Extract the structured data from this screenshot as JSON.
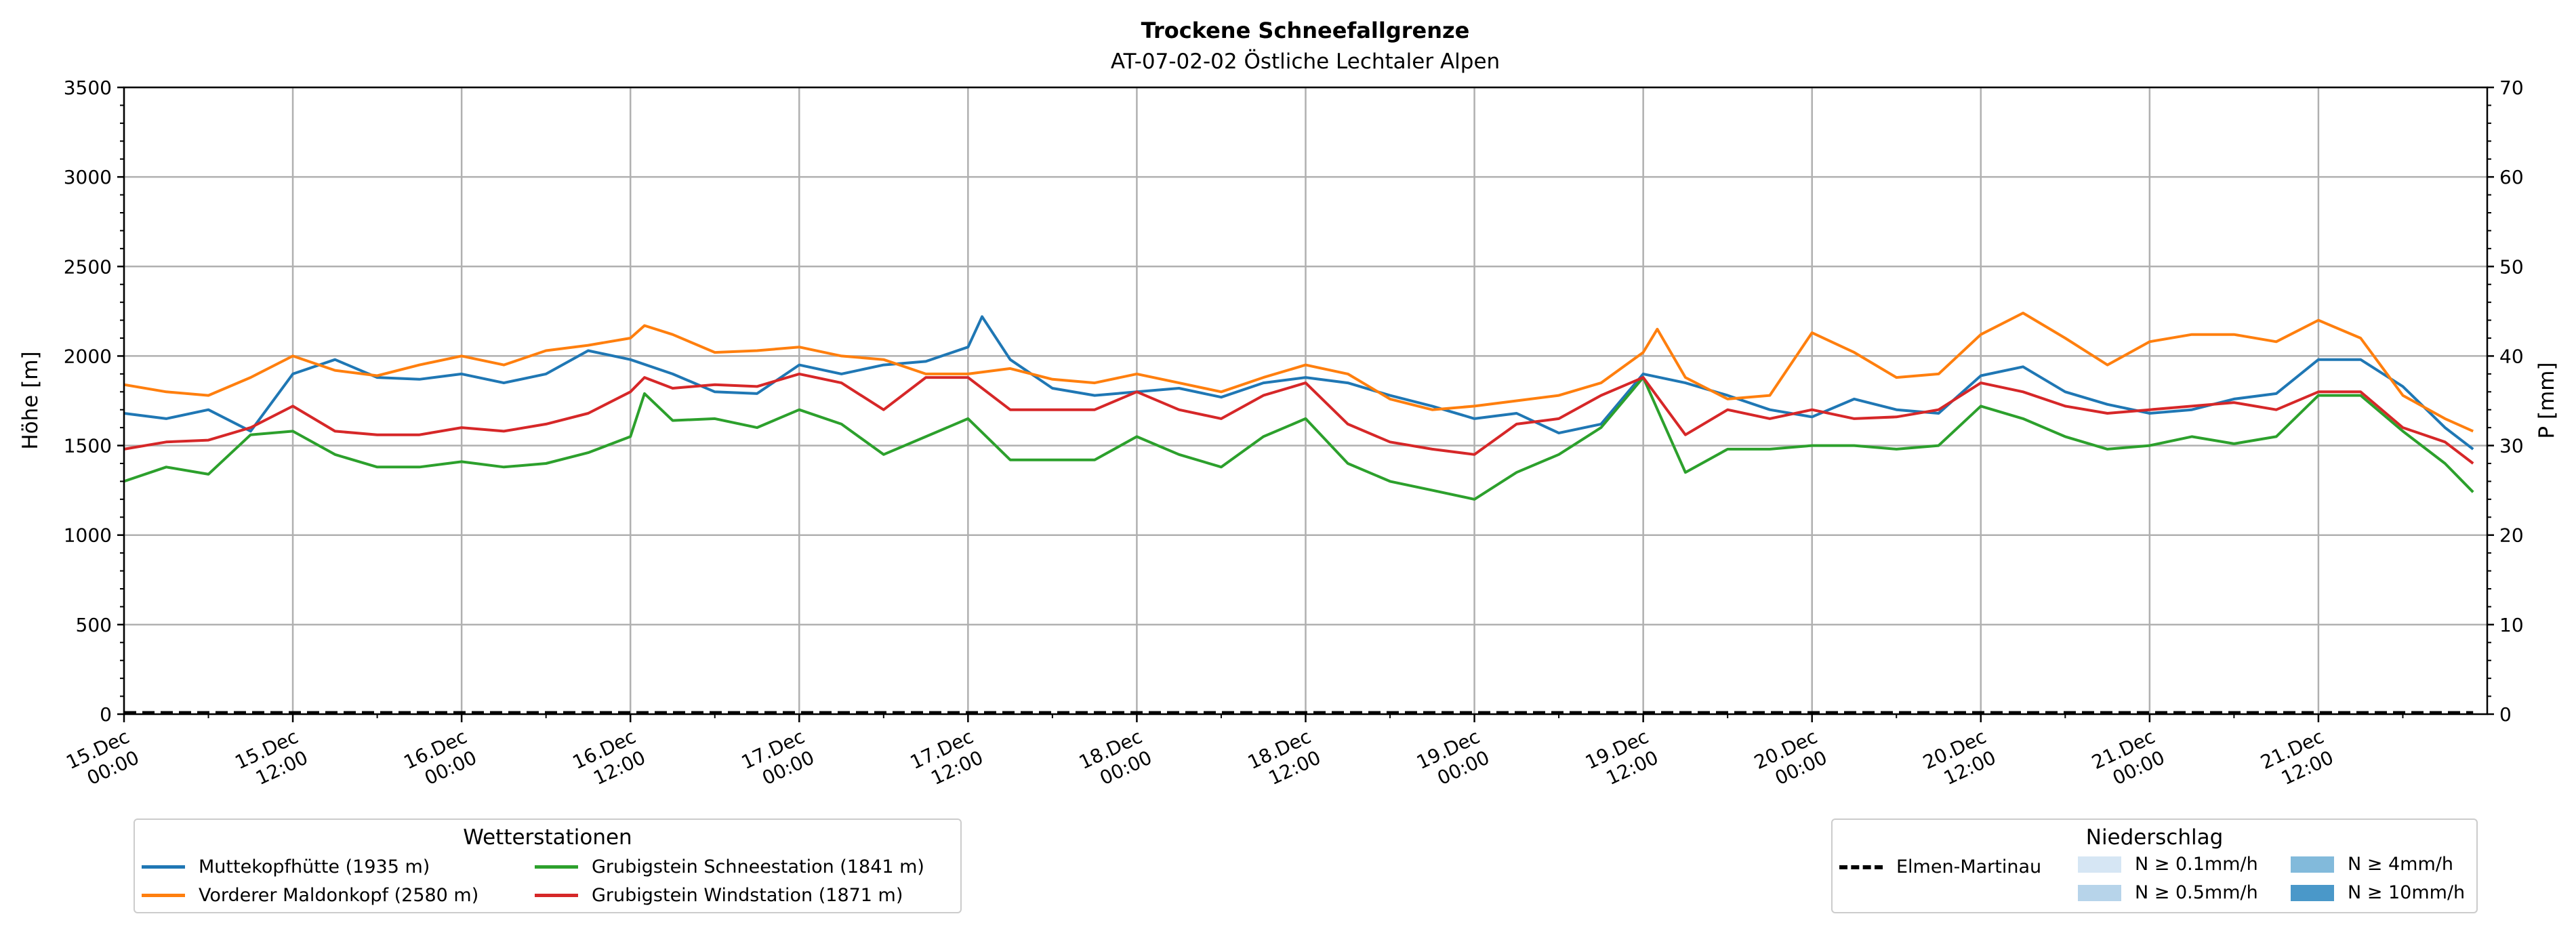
{
  "chart_data": {
    "type": "line",
    "title": "Trockene Schneefallgrenze",
    "subtitle": "AT-07-02-02 Östliche Lechtaler Alpen",
    "ylabel_left": "Höhe [m]",
    "ylabel_right": "P [mm]",
    "ylim_left": [
      0,
      3500
    ],
    "ylim_right": [
      0,
      70
    ],
    "yticks_left": [
      0,
      500,
      1000,
      1500,
      2000,
      2500,
      3000,
      3500
    ],
    "yticks_right": [
      0,
      10,
      20,
      30,
      40,
      50,
      60,
      70
    ],
    "x_start": "15.Dec 00:00",
    "x_end": "21.Dec 22:00",
    "x_ticks": [
      "15.Dec\n00:00",
      "15.Dec\n12:00",
      "16.Dec\n00:00",
      "16.Dec\n12:00",
      "17.Dec\n00:00",
      "17.Dec\n12:00",
      "18.Dec\n00:00",
      "18.Dec\n12:00",
      "19.Dec\n00:00",
      "19.Dec\n12:00",
      "20.Dec\n00:00",
      "20.Dec\n12:00",
      "21.Dec\n00:00",
      "21.Dec\n12:00"
    ],
    "x_tick_hours": [
      0,
      12,
      24,
      36,
      48,
      60,
      72,
      84,
      96,
      108,
      120,
      132,
      144,
      156
    ],
    "grid": true,
    "series": [
      {
        "name": "Muttekopfhütte (1935 m)",
        "color": "#1f77b4",
        "x_hours": [
          0,
          3,
          6,
          9,
          12,
          15,
          18,
          21,
          24,
          27,
          30,
          33,
          36,
          39,
          42,
          45,
          48,
          51,
          54,
          57,
          60,
          61,
          63,
          66,
          69,
          72,
          75,
          78,
          81,
          84,
          87,
          90,
          93,
          96,
          99,
          102,
          105,
          108,
          111,
          114,
          117,
          120,
          123,
          126,
          129,
          132,
          135,
          138,
          141,
          144,
          147,
          150,
          153,
          156,
          159,
          162,
          165,
          167
        ],
        "values": [
          1680,
          1650,
          1700,
          1580,
          1900,
          1980,
          1880,
          1870,
          1900,
          1850,
          1900,
          2030,
          1980,
          1900,
          1800,
          1790,
          1950,
          1900,
          1950,
          1970,
          2050,
          2220,
          1980,
          1820,
          1780,
          1800,
          1820,
          1770,
          1850,
          1880,
          1850,
          1780,
          1720,
          1650,
          1680,
          1570,
          1620,
          1900,
          1850,
          1780,
          1700,
          1660,
          1760,
          1700,
          1680,
          1890,
          1940,
          1800,
          1730,
          1680,
          1700,
          1760,
          1790,
          1980,
          1980,
          1830,
          1600,
          1480
        ]
      },
      {
        "name": "Vorderer Maldonkopf (2580 m)",
        "color": "#ff7f0e",
        "x_hours": [
          0,
          3,
          6,
          9,
          12,
          15,
          18,
          21,
          24,
          27,
          30,
          33,
          36,
          37,
          39,
          42,
          45,
          48,
          51,
          54,
          57,
          60,
          63,
          66,
          69,
          72,
          75,
          78,
          81,
          84,
          87,
          90,
          93,
          96,
          99,
          102,
          105,
          108,
          109,
          111,
          114,
          117,
          120,
          123,
          126,
          129,
          132,
          135,
          138,
          141,
          144,
          147,
          150,
          153,
          156,
          159,
          162,
          165,
          167
        ],
        "values": [
          1840,
          1800,
          1780,
          1880,
          2000,
          1920,
          1890,
          1950,
          2000,
          1950,
          2030,
          2060,
          2100,
          2170,
          2120,
          2020,
          2030,
          2050,
          2000,
          1980,
          1900,
          1900,
          1930,
          1870,
          1850,
          1900,
          1850,
          1800,
          1880,
          1950,
          1900,
          1760,
          1700,
          1720,
          1750,
          1780,
          1850,
          2020,
          2150,
          1880,
          1760,
          1780,
          2130,
          2020,
          1880,
          1900,
          2120,
          2240,
          2100,
          1950,
          2080,
          2120,
          2120,
          2080,
          2200,
          2100,
          1780,
          1650,
          1580
        ]
      },
      {
        "name": "Grubigstein Schneestation (1841 m)",
        "color": "#2ca02c",
        "x_hours": [
          0,
          3,
          6,
          9,
          12,
          15,
          18,
          21,
          24,
          27,
          30,
          33,
          36,
          37,
          39,
          42,
          45,
          48,
          51,
          54,
          57,
          60,
          63,
          66,
          69,
          72,
          75,
          78,
          81,
          84,
          87,
          90,
          93,
          96,
          99,
          102,
          105,
          108,
          111,
          114,
          117,
          120,
          123,
          126,
          129,
          132,
          135,
          138,
          141,
          144,
          147,
          150,
          153,
          156,
          159,
          162,
          165,
          167
        ],
        "values": [
          1300,
          1380,
          1340,
          1560,
          1580,
          1450,
          1380,
          1380,
          1410,
          1380,
          1400,
          1460,
          1550,
          1790,
          1640,
          1650,
          1600,
          1700,
          1620,
          1450,
          1550,
          1650,
          1420,
          1420,
          1420,
          1550,
          1450,
          1380,
          1550,
          1650,
          1400,
          1300,
          1250,
          1200,
          1350,
          1450,
          1600,
          1880,
          1350,
          1480,
          1480,
          1500,
          1500,
          1480,
          1500,
          1720,
          1650,
          1550,
          1480,
          1500,
          1550,
          1510,
          1550,
          1780,
          1780,
          1580,
          1400,
          1240
        ]
      },
      {
        "name": "Grubigstein Windstation (1871 m)",
        "color": "#d62728",
        "x_hours": [
          0,
          3,
          6,
          9,
          12,
          15,
          18,
          21,
          24,
          27,
          30,
          33,
          36,
          37,
          39,
          42,
          45,
          48,
          51,
          54,
          57,
          60,
          63,
          66,
          69,
          72,
          75,
          78,
          81,
          84,
          87,
          90,
          93,
          96,
          99,
          102,
          105,
          108,
          111,
          114,
          117,
          120,
          123,
          126,
          129,
          132,
          135,
          138,
          141,
          144,
          147,
          150,
          153,
          156,
          159,
          162,
          165,
          167
        ],
        "values": [
          1480,
          1520,
          1530,
          1600,
          1720,
          1580,
          1560,
          1560,
          1600,
          1580,
          1620,
          1680,
          1800,
          1880,
          1820,
          1840,
          1830,
          1900,
          1850,
          1700,
          1880,
          1880,
          1700,
          1700,
          1700,
          1800,
          1700,
          1650,
          1780,
          1850,
          1620,
          1520,
          1480,
          1450,
          1620,
          1650,
          1780,
          1880,
          1560,
          1700,
          1650,
          1700,
          1650,
          1660,
          1700,
          1850,
          1800,
          1720,
          1680,
          1700,
          1720,
          1740,
          1700,
          1800,
          1800,
          1600,
          1520,
          1400
        ]
      }
    ],
    "precip_series": {
      "name": "Elmen-Martinau",
      "color": "#000000",
      "x_hours": [
        0,
        167
      ],
      "values": [
        0,
        0
      ]
    },
    "legend_stations": {
      "title": "Wetterstationen",
      "placement": "bottom-left",
      "items": [
        "Muttekopfhütte (1935 m)",
        "Vorderer Maldonkopf (2580 m)",
        "Grubigstein Schneestation (1841 m)",
        "Grubigstein Windstation (1871 m)"
      ]
    },
    "legend_precip": {
      "title": "Niederschlag",
      "placement": "bottom-right",
      "line_label": "Elmen-Martinau",
      "categories": [
        {
          "label": "N ≥ 0.1mm/h",
          "color": "#d6e6f4"
        },
        {
          "label": "N ≥ 0.5mm/h",
          "color": "#b7d4ea"
        },
        {
          "label": "N ≥ 4mm/h",
          "color": "#82badb"
        },
        {
          "label": "N ≥ 10mm/h",
          "color": "#4a98c9"
        }
      ]
    }
  }
}
